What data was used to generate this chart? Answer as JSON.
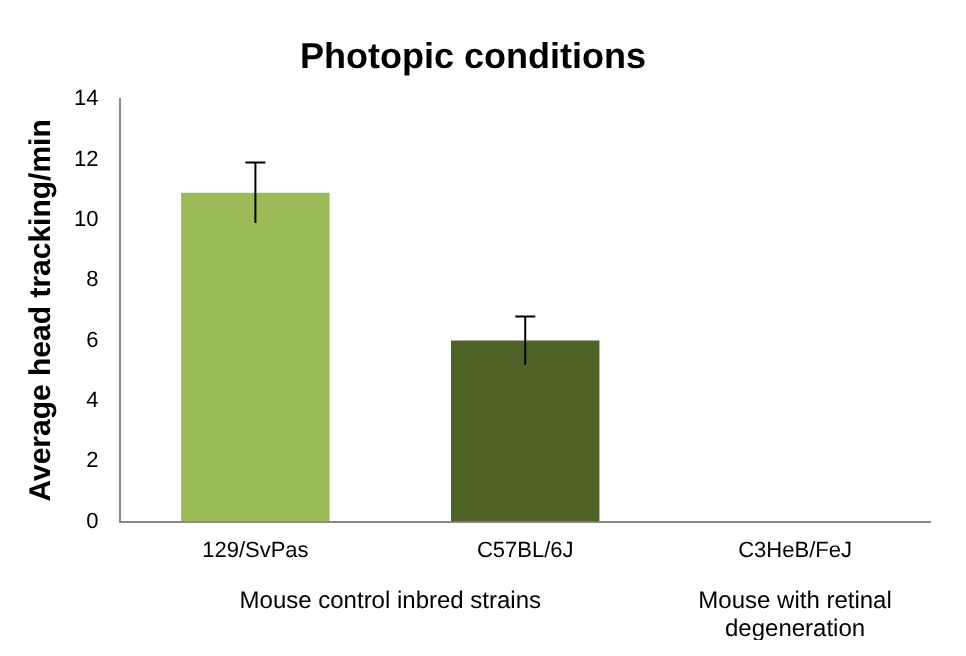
{
  "chart_data": {
    "type": "bar",
    "title": "Photopic conditions",
    "ylabel": "Average head tracking/min",
    "categories": [
      "129/SvPas",
      "C57BL/6J",
      "C3HeB/FeJ"
    ],
    "values": [
      10.9,
      6.0,
      0
    ],
    "colors": [
      "#9bbb59",
      "#4f6228",
      "#4f6228"
    ],
    "errors": [
      1.0,
      0.8,
      null
    ],
    "ylim": [
      0,
      14
    ],
    "yticks": [
      0,
      2,
      4,
      6,
      8,
      10,
      12,
      14
    ],
    "grid": false,
    "legend": false,
    "annotations": [
      "Mouse control inbred strains",
      "Mouse with retinal degeneration"
    ]
  }
}
